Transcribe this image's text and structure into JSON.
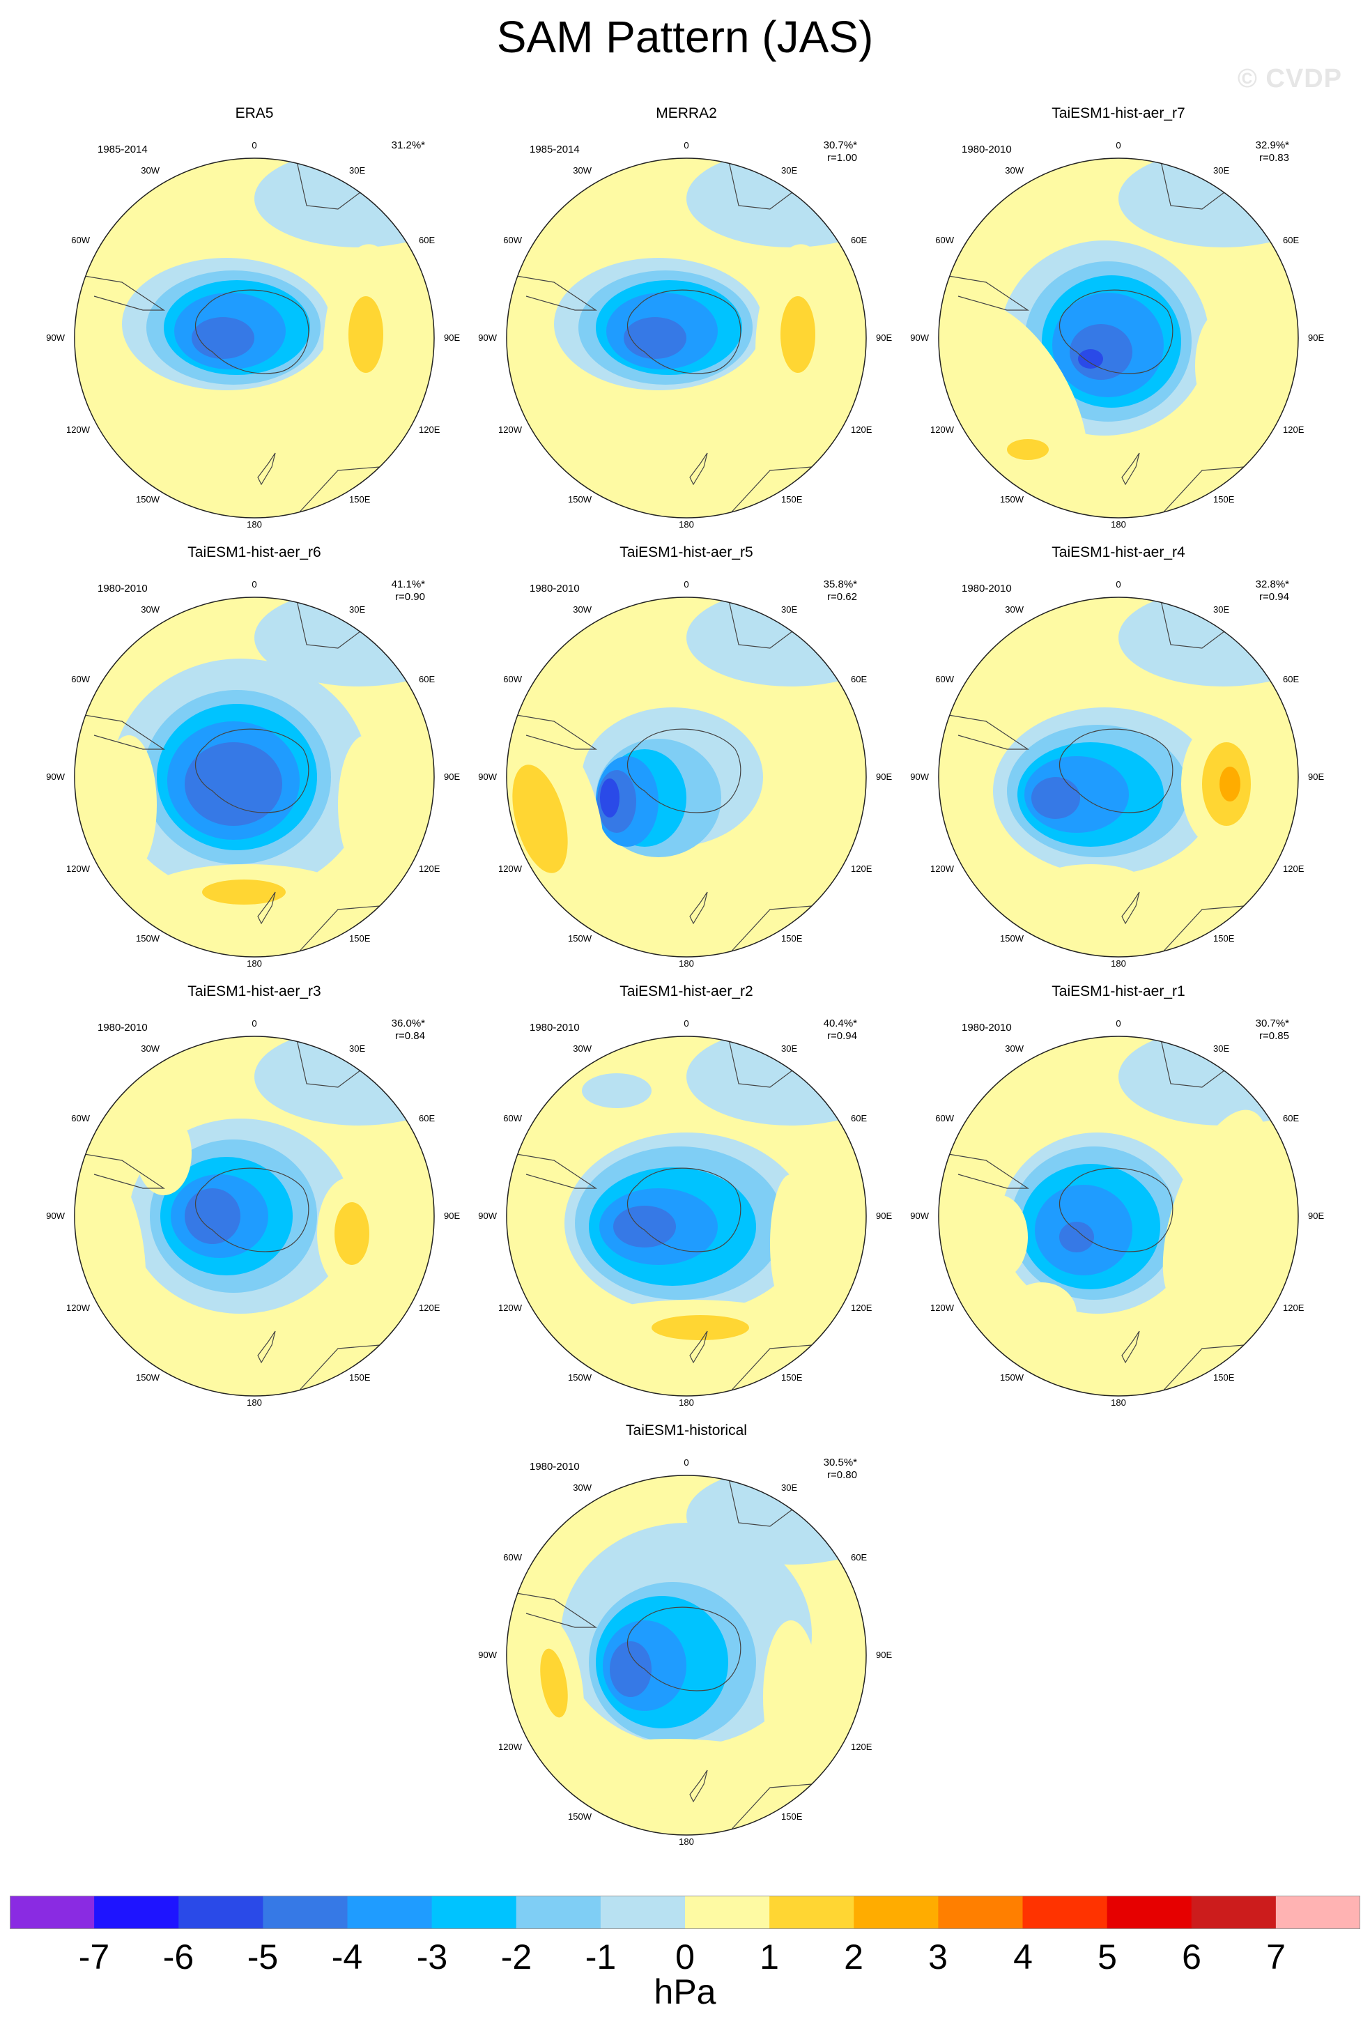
{
  "title": "SAM Pattern (JAS)",
  "watermark": "© CVDP",
  "longitude_labels": [
    "0",
    "30E",
    "60E",
    "90E",
    "120E",
    "150E",
    "180",
    "150W",
    "120W",
    "90W",
    "60W",
    "30W"
  ],
  "palette": {
    "-7": "#8a2be2",
    "-6": "#1e14ff",
    "-5": "#2a4ae8",
    "-4": "#3679e6",
    "-3": "#1f9cff",
    "-2": "#00c3ff",
    "-1": "#7fcef5",
    "0": "#b8e1f2",
    "1": "#fefaa3",
    "2": "#ffd633",
    "3": "#ffac00",
    "4": "#ff7f00",
    "5": "#ff3300",
    "6": "#e60000",
    "7": "#cc1c1c",
    "8": "#ffb3b3"
  },
  "panels": [
    {
      "title": "ERA5",
      "period": "1985-2014",
      "pct": "31.2%*",
      "r": ""
    },
    {
      "title": "MERRA2",
      "period": "1985-2014",
      "pct": "30.7%*",
      "r": "r=1.00"
    },
    {
      "title": "TaiESM1-hist-aer_r7",
      "period": "1980-2010",
      "pct": "32.9%*",
      "r": "r=0.83"
    },
    {
      "title": "TaiESM1-hist-aer_r6",
      "period": "1980-2010",
      "pct": "41.1%*",
      "r": "r=0.90"
    },
    {
      "title": "TaiESM1-hist-aer_r5",
      "period": "1980-2010",
      "pct": "35.8%*",
      "r": "r=0.62"
    },
    {
      "title": "TaiESM1-hist-aer_r4",
      "period": "1980-2010",
      "pct": "32.8%*",
      "r": "r=0.94"
    },
    {
      "title": "TaiESM1-hist-aer_r3",
      "period": "1980-2010",
      "pct": "36.0%*",
      "r": "r=0.84"
    },
    {
      "title": "TaiESM1-hist-aer_r2",
      "period": "1980-2010",
      "pct": "40.4%*",
      "r": "r=0.94"
    },
    {
      "title": "TaiESM1-hist-aer_r1",
      "period": "1980-2010",
      "pct": "30.7%*",
      "r": "r=0.85"
    },
    {
      "title": "TaiESM1-historical",
      "period": "1980-2010",
      "pct": "30.5%*",
      "r": "r=0.80"
    }
  ],
  "colorbar": {
    "colors": [
      "#8a2be2",
      "#1e14ff",
      "#2a4ae8",
      "#3679e6",
      "#1f9cff",
      "#00c3ff",
      "#7fcef5",
      "#b8e1f2",
      "#fefaa3",
      "#ffd633",
      "#ffac00",
      "#ff7f00",
      "#ff3300",
      "#e60000",
      "#cc1c1c",
      "#ffb3b3"
    ],
    "ticks": [
      "-7",
      "-6",
      "-5",
      "-4",
      "-3",
      "-2",
      "-1",
      "0",
      "1",
      "2",
      "3",
      "4",
      "5",
      "6",
      "7"
    ],
    "units": "hPa"
  }
}
